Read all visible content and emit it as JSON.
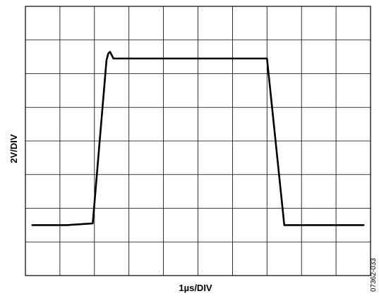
{
  "chart_data": {
    "type": "line",
    "title": "",
    "xlabel": "1µs/DIV",
    "ylabel": "2V/DIV",
    "figure_id": "07362-033",
    "grid": true,
    "divisions": {
      "x": 10,
      "y": 8
    },
    "xlim": [
      0,
      10
    ],
    "ylim": [
      0,
      8
    ],
    "series": [
      {
        "x": [
          0.2,
          1.2,
          1.95,
          2.35,
          2.4,
          2.45,
          2.5,
          2.55,
          2.6,
          7.0,
          7.5,
          7.55,
          9.8
        ],
        "y": [
          1.5,
          1.5,
          1.55,
          6.4,
          6.6,
          6.65,
          6.55,
          6.45,
          6.45,
          6.45,
          1.5,
          1.5,
          1.5
        ]
      }
    ],
    "colors": {
      "trace": "#000000",
      "grid": "#000000"
    }
  }
}
